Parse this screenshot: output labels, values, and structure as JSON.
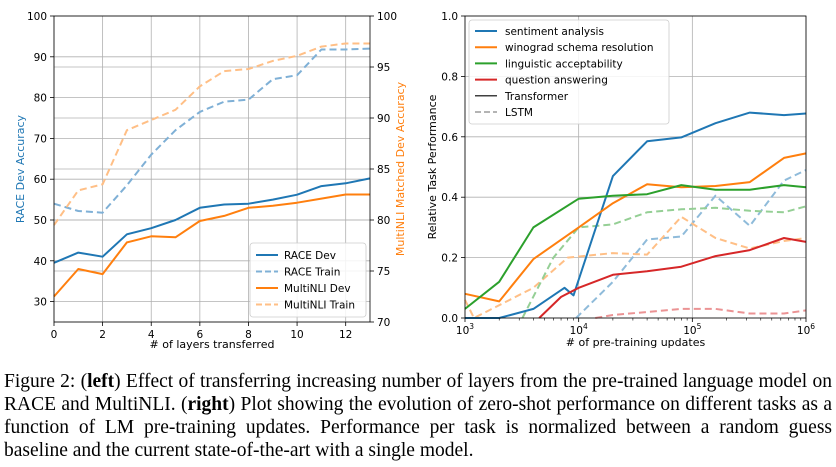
{
  "chart_data": [
    {
      "type": "line",
      "xlabel": "# of layers transferred",
      "ylabel_left": "RACE Dev Accuracy",
      "ylabel_right": "MultiNLI Matched Dev Accuracy",
      "ylabel_left_color": "#1f77b4",
      "ylabel_right_color": "#ff7f0e",
      "xlim": [
        0,
        13
      ],
      "ylim_left": [
        25,
        100
      ],
      "ylim_right": [
        70,
        100
      ],
      "x_ticks": [
        "0",
        "2",
        "4",
        "6",
        "8",
        "10",
        "12"
      ],
      "y_ticks_left": [
        "30",
        "40",
        "50",
        "60",
        "70",
        "80",
        "90",
        "100"
      ],
      "y_ticks_right": [
        "70",
        "75",
        "80",
        "85",
        "90",
        "95",
        "100"
      ],
      "grid": true,
      "legend_position": "lower-right",
      "x": [
        0,
        1,
        2,
        3,
        4,
        5,
        6,
        7,
        8,
        9,
        10,
        11,
        12,
        13
      ],
      "series": [
        {
          "name": "RACE Dev",
          "axis": "left",
          "style": "solid",
          "color": "#1f77b4",
          "values": [
            39.5,
            42,
            41,
            46.5,
            48,
            50,
            53,
            53.8,
            54,
            55,
            56.2,
            58.3,
            59,
            60.2
          ]
        },
        {
          "name": "RACE Train",
          "axis": "left",
          "style": "dashed",
          "color": "#7fb0d6",
          "values": [
            54,
            52.2,
            51.8,
            58.5,
            66,
            72,
            76.5,
            79,
            79.5,
            84.5,
            85.5,
            91.8,
            91.8,
            92
          ]
        },
        {
          "name": "MultiNLI Dev",
          "axis": "right",
          "style": "solid",
          "color": "#ff7f0e",
          "values": [
            72.5,
            75.2,
            74.7,
            77.8,
            78.4,
            78.3,
            79.9,
            80.4,
            81.2,
            81.4,
            81.7,
            82.1,
            82.5,
            82.5
          ]
        },
        {
          "name": "MultiNLI Train",
          "axis": "right",
          "style": "dashed",
          "color": "#ffbf86",
          "values": [
            79.5,
            82.9,
            83.5,
            88.8,
            89.8,
            90.8,
            93.1,
            94.6,
            94.8,
            95.6,
            96.1,
            97,
            97.3,
            97.3
          ]
        }
      ]
    },
    {
      "type": "line",
      "xlabel": "# of pre-training updates",
      "ylabel": "Relative Task Performance",
      "x_scale": "log",
      "xlim": [
        1000,
        1000000
      ],
      "ylim": [
        0.0,
        1.0
      ],
      "x_ticks": [
        {
          "base": "10",
          "exp": "3"
        },
        {
          "base": "10",
          "exp": "4"
        },
        {
          "base": "10",
          "exp": "5"
        },
        {
          "base": "10",
          "exp": "6"
        }
      ],
      "y_ticks": [
        "0.0",
        "0.2",
        "0.4",
        "0.6",
        "0.8",
        "1.0"
      ],
      "grid": true,
      "legend_position": "upper-left",
      "legend": [
        {
          "label": "sentiment analysis",
          "color": "#1f77b4",
          "style": "solid"
        },
        {
          "label": "winograd schema resolution",
          "color": "#ff7f0e",
          "style": "solid"
        },
        {
          "label": "linguistic acceptability",
          "color": "#2ca02c",
          "style": "solid"
        },
        {
          "label": "question answering",
          "color": "#d62728",
          "style": "solid"
        },
        {
          "label": "Transformer",
          "color": "#000000",
          "style": "solid"
        },
        {
          "label": "LSTM",
          "color": "#888888",
          "style": "dashed"
        }
      ],
      "series": [
        {
          "name": "sentiment analysis",
          "model": "Transformer",
          "color": "#1f77b4",
          "style": "solid",
          "points": [
            [
              1000,
              0.0
            ],
            [
              2000,
              0.0
            ],
            [
              4000,
              0.03
            ],
            [
              7500,
              0.1
            ],
            [
              9000,
              0.075
            ],
            [
              20000,
              0.47
            ],
            [
              40000,
              0.585
            ],
            [
              80000,
              0.598
            ],
            [
              160000,
              0.645
            ],
            [
              320000,
              0.68
            ],
            [
              640000,
              0.672
            ],
            [
              1000000,
              0.677
            ]
          ]
        },
        {
          "name": "winograd schema resolution",
          "model": "Transformer",
          "color": "#ff7f0e",
          "style": "solid",
          "points": [
            [
              1000,
              0.08
            ],
            [
              2000,
              0.055
            ],
            [
              4000,
              0.195
            ],
            [
              10000,
              0.3
            ],
            [
              20000,
              0.38
            ],
            [
              40000,
              0.443
            ],
            [
              80000,
              0.433
            ],
            [
              160000,
              0.437
            ],
            [
              320000,
              0.45
            ],
            [
              640000,
              0.53
            ],
            [
              1000000,
              0.545
            ]
          ]
        },
        {
          "name": "linguistic acceptability",
          "model": "Transformer",
          "color": "#2ca02c",
          "style": "solid",
          "points": [
            [
              1000,
              0.03
            ],
            [
              2000,
              0.12
            ],
            [
              4000,
              0.3
            ],
            [
              10000,
              0.395
            ],
            [
              20000,
              0.405
            ],
            [
              40000,
              0.41
            ],
            [
              80000,
              0.44
            ],
            [
              160000,
              0.425
            ],
            [
              320000,
              0.425
            ],
            [
              640000,
              0.44
            ],
            [
              1000000,
              0.433
            ]
          ]
        },
        {
          "name": "question answering",
          "model": "Transformer",
          "color": "#d62728",
          "style": "solid",
          "points": [
            [
              4500,
              0.0
            ],
            [
              7000,
              0.07
            ],
            [
              10000,
              0.1
            ],
            [
              20000,
              0.143
            ],
            [
              40000,
              0.155
            ],
            [
              80000,
              0.17
            ],
            [
              160000,
              0.205
            ],
            [
              320000,
              0.225
            ],
            [
              640000,
              0.265
            ],
            [
              1000000,
              0.252
            ]
          ]
        },
        {
          "name": "sentiment analysis",
          "model": "LSTM",
          "color": "#8fbbda",
          "style": "dashed",
          "points": [
            [
              9500,
              0.0
            ],
            [
              20000,
              0.12
            ],
            [
              40000,
              0.26
            ],
            [
              80000,
              0.27
            ],
            [
              160000,
              0.405
            ],
            [
              320000,
              0.305
            ],
            [
              640000,
              0.455
            ],
            [
              1000000,
              0.49
            ]
          ]
        },
        {
          "name": "winograd schema resolution",
          "model": "LSTM",
          "color": "#ffbf86",
          "style": "dashed",
          "points": [
            [
              1000,
              0.06
            ],
            [
              1200,
              0.0
            ],
            [
              4000,
              0.1
            ],
            [
              8000,
              0.2
            ],
            [
              20000,
              0.215
            ],
            [
              40000,
              0.21
            ],
            [
              80000,
              0.335
            ],
            [
              160000,
              0.265
            ],
            [
              320000,
              0.23
            ],
            [
              640000,
              0.255
            ],
            [
              1000000,
              0.265
            ]
          ]
        },
        {
          "name": "linguistic acceptability",
          "model": "LSTM",
          "color": "#95cf95",
          "style": "dashed",
          "points": [
            [
              3200,
              0.0
            ],
            [
              6000,
              0.2
            ],
            [
              10000,
              0.3
            ],
            [
              20000,
              0.31
            ],
            [
              40000,
              0.35
            ],
            [
              80000,
              0.36
            ],
            [
              160000,
              0.365
            ],
            [
              320000,
              0.355
            ],
            [
              640000,
              0.35
            ],
            [
              1000000,
              0.37
            ]
          ]
        },
        {
          "name": "question answering",
          "model": "LSTM",
          "color": "#eb9394",
          "style": "dashed",
          "points": [
            [
              14000,
              0.0
            ],
            [
              20000,
              0.01
            ],
            [
              40000,
              0.02
            ],
            [
              80000,
              0.03
            ],
            [
              160000,
              0.03
            ],
            [
              320000,
              0.015
            ],
            [
              640000,
              0.015
            ],
            [
              1000000,
              0.025
            ]
          ]
        }
      ]
    }
  ],
  "caption": {
    "prefix": "Figure 2: (",
    "left_word": "left",
    "middle": ") Effect of transferring increasing number of layers from the pre-trained language model on RACE and MultiNLI. (",
    "right_word": "right",
    "suffix": ") Plot showing the evolution of zero-shot performance on different tasks as a function of LM pre-training updates. Performance per task is normalized between a random guess baseline and the current state-of-the-art with a single model."
  }
}
